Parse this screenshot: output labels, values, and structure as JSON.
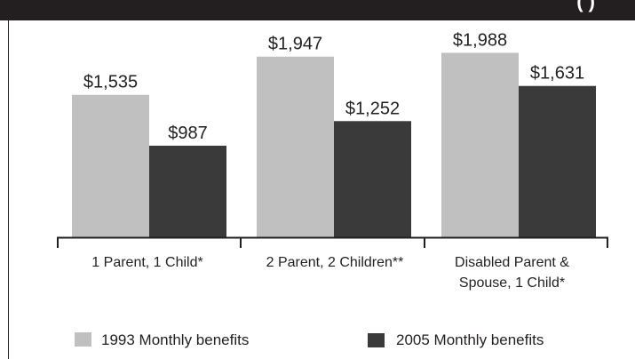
{
  "title": "(                    )",
  "chart_data": {
    "type": "bar",
    "categories": [
      "1 Parent, 1 Child*",
      "2 Parent, 2 Children**",
      "Disabled Parent & Spouse, 1 Child*"
    ],
    "series": [
      {
        "name": "1993 Monthly benefits",
        "values": [
          1535,
          1947,
          1988
        ],
        "labels": [
          "$1,535",
          "$1,947",
          "$1,988"
        ],
        "color": "#c0c0c0"
      },
      {
        "name": "2005 Monthly benefits",
        "values": [
          987,
          1252,
          1631
        ],
        "labels": [
          "$987",
          "$1,252",
          "$1,631"
        ],
        "color": "#3a3a3a"
      }
    ],
    "ylim": [
      0,
      2200
    ],
    "legend": "bottom"
  }
}
